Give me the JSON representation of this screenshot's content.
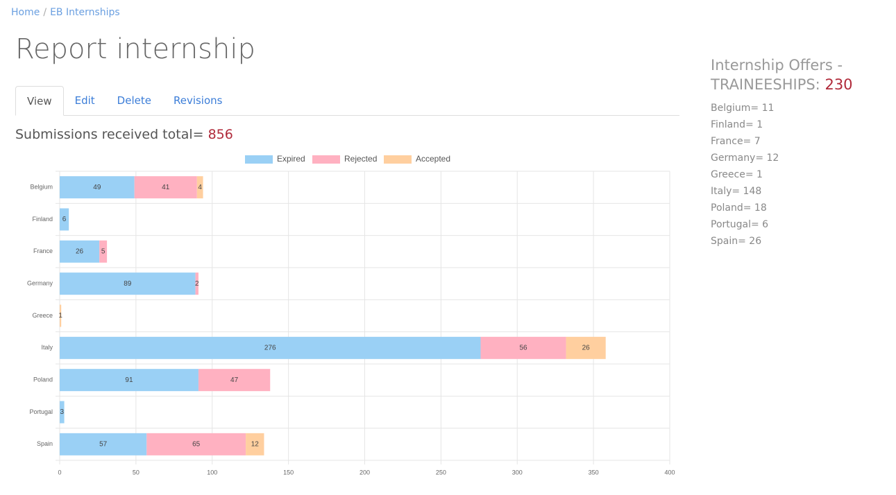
{
  "breadcrumb": [
    "Home",
    "EB Internships"
  ],
  "title": "Report internship",
  "tabs": [
    "View",
    "Edit",
    "Delete",
    "Revisions"
  ],
  "summary": {
    "label": "Submissions received total=",
    "total": 856
  },
  "sidebar": {
    "title": "Internship Offers - TRAINEESHIPS:",
    "total": 230,
    "items": [
      "Belgium= 11",
      "Finland= 1",
      "France= 7",
      "Germany= 12",
      "Greece= 1",
      "Italy= 148",
      "Poland= 18",
      "Portugal= 6",
      "Spain= 26"
    ]
  },
  "chart_data": {
    "type": "stacked_barh",
    "categories": [
      "Belgium",
      "Finland",
      "France",
      "Germany",
      "Greece",
      "Italy",
      "Poland",
      "Portugal",
      "Spain"
    ],
    "series": [
      {
        "name": "Expired",
        "color": "#9ad0f5",
        "values": [
          49,
          6,
          26,
          89,
          0,
          276,
          91,
          3,
          57
        ]
      },
      {
        "name": "Rejected",
        "color": "#ffb1c1",
        "values": [
          41,
          0,
          5,
          2,
          0,
          56,
          47,
          0,
          65
        ]
      },
      {
        "name": "Accepted",
        "color": "#ffcf9f",
        "values": [
          4,
          0,
          0,
          0,
          1,
          26,
          0,
          0,
          12
        ]
      }
    ],
    "xlim": [
      0,
      400
    ],
    "xticks": [
      0,
      50,
      100,
      150,
      200,
      250,
      300,
      350,
      400
    ],
    "grid": true,
    "legend": "top"
  }
}
